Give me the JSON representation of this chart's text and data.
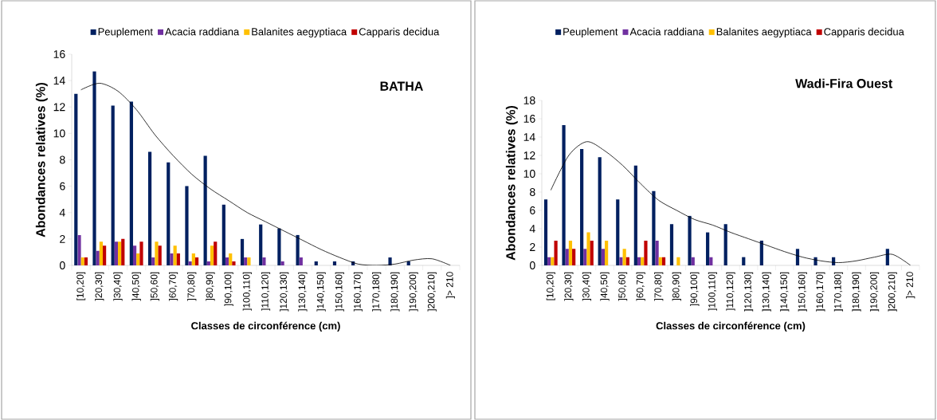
{
  "chart_data": [
    {
      "type": "bar",
      "title": "BATHA",
      "xlabel": "Classes de circonférence (cm)",
      "ylabel": "Abondances relatives (%)",
      "legend": "top",
      "categories": [
        "[10,20]",
        "]20,30]",
        "]30,40]",
        "]40,50]",
        "]50,60]",
        "]60,70]",
        "]70,80]",
        "]80,90]",
        "]90,100]",
        "]100,110]",
        "]110,120]",
        "]120,130]",
        "]130,140]",
        "]140,150]",
        "]150,160]",
        "]160,170]",
        "]170,180]",
        "]180,190]",
        "]190,200]",
        "]200,210]",
        "]> 210"
      ],
      "ylim": [
        0,
        16
      ],
      "yticks": [
        0,
        2,
        4,
        6,
        8,
        10,
        12,
        14,
        16
      ],
      "series": [
        {
          "name": "Peuplement",
          "color": "#002060",
          "values": [
            13,
            14.7,
            12.1,
            12.4,
            8.6,
            7.8,
            6.0,
            8.3,
            4.6,
            2.0,
            3.1,
            2.8,
            2.3,
            0.3,
            0.3,
            0.3,
            0,
            0.6,
            0.3,
            0,
            0
          ]
        },
        {
          "name": "Acacia raddiana",
          "color": "#7030a0",
          "values": [
            2.3,
            1.1,
            1.8,
            1.5,
            0.6,
            0.9,
            0.3,
            0.3,
            0.6,
            0.6,
            0.6,
            0.3,
            0.6,
            0,
            0,
            0,
            0,
            0,
            0,
            0,
            0
          ]
        },
        {
          "name": "Balanites aegyptiaca",
          "color": "#ffc000",
          "values": [
            0.6,
            1.8,
            1.8,
            0.9,
            1.8,
            1.5,
            0.9,
            1.5,
            0.9,
            0.6,
            0,
            0,
            0,
            0,
            0,
            0,
            0,
            0,
            0,
            0,
            0
          ]
        },
        {
          "name": "Capparis decidua",
          "color": "#c00000",
          "values": [
            0.6,
            1.5,
            2.0,
            1.8,
            1.5,
            0.9,
            0.6,
            1.8,
            0.3,
            0,
            0,
            0,
            0,
            0,
            0,
            0,
            0,
            0,
            0,
            0,
            0
          ]
        },
        {
          "type": "line",
          "color": "#000000",
          "values": [
            13.3,
            13.8,
            13.2,
            11.8,
            9.9,
            8.3,
            6.9,
            5.8,
            4.9,
            4.0,
            3.3,
            2.6,
            1.9,
            1.2,
            0.6,
            0.1,
            0,
            0.1,
            0.4,
            0.5,
            0
          ]
        }
      ]
    },
    {
      "type": "bar",
      "title": "Wadi-Fira Ouest",
      "xlabel": "Classes de circonférence (cm)",
      "ylabel": "Abondances relatives (%)",
      "legend": "top",
      "categories": [
        "[10,20]",
        "]20,30]",
        "]30,40]",
        "]40,50]",
        "]50,60]",
        "]60,70]",
        "]70,80]",
        "]80,90]",
        "]90,100]",
        "]100,110]",
        "]110,120]",
        "]120,130]",
        "]130,140]",
        "]140,150]",
        "]150,160]",
        "]160,170]",
        "]170,180]",
        "]180,190]",
        "]190,200]",
        "]200,210]",
        "]> 210"
      ],
      "ylim": [
        0,
        18
      ],
      "yticks": [
        0,
        2,
        4,
        6,
        8,
        10,
        12,
        14,
        16,
        18
      ],
      "series": [
        {
          "name": "Peuplement",
          "color": "#002060",
          "values": [
            7.2,
            15.3,
            12.7,
            11.8,
            7.2,
            10.9,
            8.1,
            4.5,
            5.4,
            3.6,
            4.5,
            0.9,
            2.7,
            0,
            1.8,
            0.9,
            0.9,
            0,
            0,
            1.8,
            0
          ]
        },
        {
          "name": "Acacia raddiana",
          "color": "#7030a0",
          "values": [
            0.9,
            1.8,
            1.8,
            1.8,
            0.9,
            0.9,
            2.7,
            0,
            0.9,
            0.9,
            0,
            0,
            0,
            0,
            0,
            0,
            0,
            0,
            0,
            0,
            0
          ]
        },
        {
          "name": "Balanites aegyptiaca",
          "color": "#ffc000",
          "values": [
            0.9,
            2.7,
            3.6,
            2.7,
            1.8,
            0.9,
            0.9,
            0.9,
            0,
            0,
            0,
            0,
            0,
            0,
            0,
            0,
            0,
            0,
            0,
            0,
            0
          ]
        },
        {
          "name": "Capparis decidua",
          "color": "#c00000",
          "values": [
            2.7,
            1.8,
            2.7,
            0,
            0.9,
            2.7,
            0.9,
            0,
            0,
            0,
            0,
            0,
            0,
            0,
            0,
            0,
            0,
            0,
            0,
            0,
            0
          ]
        },
        {
          "type": "line",
          "color": "#000000",
          "values": [
            8.2,
            12.0,
            13.5,
            12.5,
            10.9,
            8.9,
            7.1,
            6.0,
            5.0,
            4.4,
            3.6,
            2.9,
            2.2,
            1.5,
            0.9,
            0.5,
            0.3,
            0.5,
            0.9,
            1.2,
            0
          ]
        }
      ]
    }
  ]
}
